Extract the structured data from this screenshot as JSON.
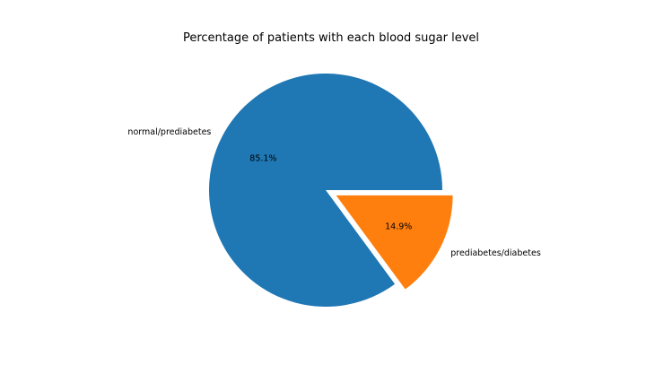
{
  "chart_data": {
    "type": "pie",
    "title": "Percentage of patients with each blood sugar level",
    "slices": [
      {
        "label": "normal/prediabetes",
        "value": 85.1,
        "pct_label": "85.1%",
        "color": "#1f77b4",
        "exploded": false
      },
      {
        "label": "prediabetes/diabetes",
        "value": 14.9,
        "pct_label": "14.9%",
        "color": "#ff7f0e",
        "exploded": true
      }
    ],
    "start_angle_deg": 0,
    "direction": "counterclockwise"
  }
}
